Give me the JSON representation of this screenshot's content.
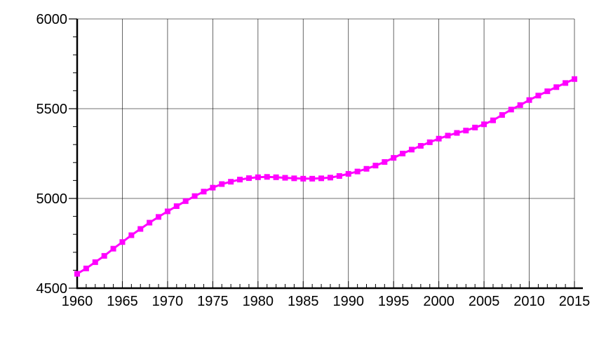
{
  "colors": {
    "line": "#ff00ff",
    "marker": "#ff00ff",
    "grid": "#000000",
    "axis": "#000000",
    "background": "#ffffff"
  },
  "chart_data": {
    "type": "line",
    "title": "",
    "xlabel": "",
    "ylabel": "",
    "xlim": [
      1960,
      2015
    ],
    "ylim": [
      4500,
      6000
    ],
    "grid": true,
    "legend": "none",
    "x_ticks": [
      1960,
      1965,
      1970,
      1975,
      1980,
      1985,
      1990,
      1995,
      2000,
      2005,
      2010,
      2015
    ],
    "y_ticks": [
      4500,
      5000,
      5500,
      6000
    ],
    "x_tick_labels": [
      "1960",
      "1965",
      "1970",
      "1975",
      "1980",
      "1985",
      "1990",
      "1995",
      "2000",
      "2005",
      "2010",
      "2015"
    ],
    "y_tick_labels": [
      "4500",
      "5000",
      "5500",
      "6000"
    ],
    "x": [
      1960,
      1961,
      1962,
      1963,
      1964,
      1965,
      1966,
      1967,
      1968,
      1969,
      1970,
      1971,
      1972,
      1973,
      1974,
      1975,
      1976,
      1977,
      1978,
      1979,
      1980,
      1981,
      1982,
      1983,
      1984,
      1985,
      1986,
      1987,
      1988,
      1989,
      1990,
      1991,
      1992,
      1993,
      1994,
      1995,
      1996,
      1997,
      1998,
      1999,
      2000,
      2001,
      2002,
      2003,
      2004,
      2005,
      2006,
      2007,
      2008,
      2009,
      2010,
      2011,
      2012,
      2013,
      2014,
      2015
    ],
    "series": [
      {
        "values": [
          4580,
          4610,
          4645,
          4680,
          4720,
          4757,
          4795,
          4830,
          4865,
          4897,
          4928,
          4957,
          4985,
          5013,
          5038,
          5060,
          5080,
          5093,
          5105,
          5113,
          5118,
          5120,
          5118,
          5115,
          5112,
          5110,
          5110,
          5112,
          5116,
          5125,
          5137,
          5150,
          5165,
          5183,
          5203,
          5226,
          5250,
          5272,
          5293,
          5313,
          5333,
          5350,
          5365,
          5378,
          5395,
          5413,
          5435,
          5465,
          5495,
          5520,
          5548,
          5573,
          5597,
          5620,
          5643,
          5665
        ]
      }
    ]
  }
}
